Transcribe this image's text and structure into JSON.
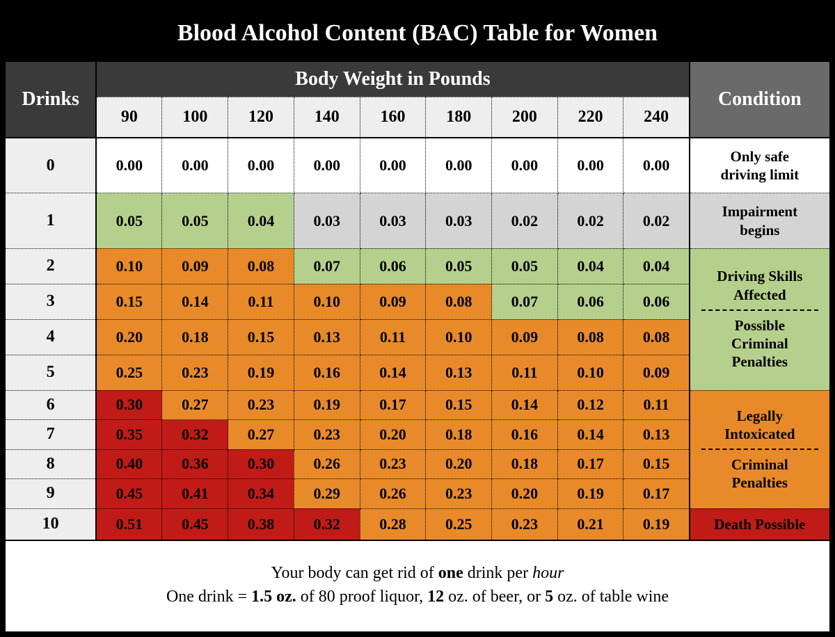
{
  "title": "Blood Alcohol Content (BAC) Table for Women",
  "headers": {
    "drinks": "Drinks",
    "body_weight": "Body Weight in Pounds",
    "condition": "Condition"
  },
  "weights": [
    "90",
    "100",
    "120",
    "140",
    "160",
    "180",
    "200",
    "220",
    "240"
  ],
  "colors": {
    "white": "#ffffff",
    "gray": "#d4d4d4",
    "green": "#b5d08c",
    "orange": "#e88a2a",
    "red": "#c11b17",
    "hdr_dark": "#3a3a3a",
    "hdr_mid": "#6a6a6a",
    "row_hdr": "#eeeeee"
  },
  "rows": [
    {
      "drinks": "0",
      "vals": [
        "0.00",
        "0.00",
        "0.00",
        "0.00",
        "0.00",
        "0.00",
        "0.00",
        "0.00",
        "0.00"
      ],
      "bgs": [
        "white",
        "white",
        "white",
        "white",
        "white",
        "white",
        "white",
        "white",
        "white"
      ]
    },
    {
      "drinks": "1",
      "vals": [
        "0.05",
        "0.05",
        "0.04",
        "0.03",
        "0.03",
        "0.03",
        "0.02",
        "0.02",
        "0.02"
      ],
      "bgs": [
        "green",
        "green",
        "green",
        "gray",
        "gray",
        "gray",
        "gray",
        "gray",
        "gray"
      ]
    },
    {
      "drinks": "2",
      "vals": [
        "0.10",
        "0.09",
        "0.08",
        "0.07",
        "0.06",
        "0.05",
        "0.05",
        "0.04",
        "0.04"
      ],
      "bgs": [
        "orange",
        "orange",
        "orange",
        "green",
        "green",
        "green",
        "green",
        "green",
        "green"
      ]
    },
    {
      "drinks": "3",
      "vals": [
        "0.15",
        "0.14",
        "0.11",
        "0.10",
        "0.09",
        "0.08",
        "0.07",
        "0.06",
        "0.06"
      ],
      "bgs": [
        "orange",
        "orange",
        "orange",
        "orange",
        "orange",
        "orange",
        "green",
        "green",
        "green"
      ]
    },
    {
      "drinks": "4",
      "vals": [
        "0.20",
        "0.18",
        "0.15",
        "0.13",
        "0.11",
        "0.10",
        "0.09",
        "0.08",
        "0.08"
      ],
      "bgs": [
        "orange",
        "orange",
        "orange",
        "orange",
        "orange",
        "orange",
        "orange",
        "orange",
        "orange"
      ]
    },
    {
      "drinks": "5",
      "vals": [
        "0.25",
        "0.23",
        "0.19",
        "0.16",
        "0.14",
        "0.13",
        "0.11",
        "0.10",
        "0.09"
      ],
      "bgs": [
        "orange",
        "orange",
        "orange",
        "orange",
        "orange",
        "orange",
        "orange",
        "orange",
        "orange"
      ]
    },
    {
      "drinks": "6",
      "vals": [
        "0.30",
        "0.27",
        "0.23",
        "0.19",
        "0.17",
        "0.15",
        "0.14",
        "0.12",
        "0.11"
      ],
      "bgs": [
        "red",
        "orange",
        "orange",
        "orange",
        "orange",
        "orange",
        "orange",
        "orange",
        "orange"
      ]
    },
    {
      "drinks": "7",
      "vals": [
        "0.35",
        "0.32",
        "0.27",
        "0.23",
        "0.20",
        "0.18",
        "0.16",
        "0.14",
        "0.13"
      ],
      "bgs": [
        "red",
        "red",
        "orange",
        "orange",
        "orange",
        "orange",
        "orange",
        "orange",
        "orange"
      ]
    },
    {
      "drinks": "8",
      "vals": [
        "0.40",
        "0.36",
        "0.30",
        "0.26",
        "0.23",
        "0.20",
        "0.18",
        "0.17",
        "0.15"
      ],
      "bgs": [
        "red",
        "red",
        "red",
        "orange",
        "orange",
        "orange",
        "orange",
        "orange",
        "orange"
      ]
    },
    {
      "drinks": "9",
      "vals": [
        "0.45",
        "0.41",
        "0.34",
        "0.29",
        "0.26",
        "0.23",
        "0.20",
        "0.19",
        "0.17"
      ],
      "bgs": [
        "red",
        "red",
        "red",
        "orange",
        "orange",
        "orange",
        "orange",
        "orange",
        "orange"
      ]
    },
    {
      "drinks": "10",
      "vals": [
        "0.51",
        "0.45",
        "0.38",
        "0.32",
        "0.28",
        "0.25",
        "0.23",
        "0.21",
        "0.19"
      ],
      "bgs": [
        "red",
        "red",
        "red",
        "red",
        "orange",
        "orange",
        "orange",
        "orange",
        "orange"
      ]
    }
  ],
  "conditions": [
    {
      "rows": 1,
      "bg": "white",
      "lines": [
        "Only safe",
        "driving limit"
      ]
    },
    {
      "rows": 1,
      "bg": "gray",
      "lines": [
        "Impairment",
        "begins"
      ]
    },
    {
      "rows": 4,
      "bg": "green",
      "lines": [
        "Driving Skills",
        "Affected"
      ],
      "dash": true,
      "lines2": [
        "Possible",
        "Criminal",
        "Penalties"
      ]
    },
    {
      "rows": 4,
      "bg": "orange",
      "lines": [
        "Legally",
        "Intoxicated"
      ],
      "dash": true,
      "lines2": [
        "Criminal",
        "Penalties"
      ]
    },
    {
      "rows": 1,
      "bg": "red",
      "lines": [
        "Death Possible"
      ]
    }
  ],
  "footnote": {
    "l1_a": "Your body can get rid of ",
    "l1_b": "one",
    "l1_c": " drink per ",
    "l1_d": "hour",
    "l2_a": "One drink = ",
    "l2_b": "1.5 oz.",
    "l2_c": " of 80 proof liquor, ",
    "l2_d": "12",
    "l2_e": " oz. of beer, or ",
    "l2_f": "5",
    "l2_g": " oz. of table wine"
  }
}
